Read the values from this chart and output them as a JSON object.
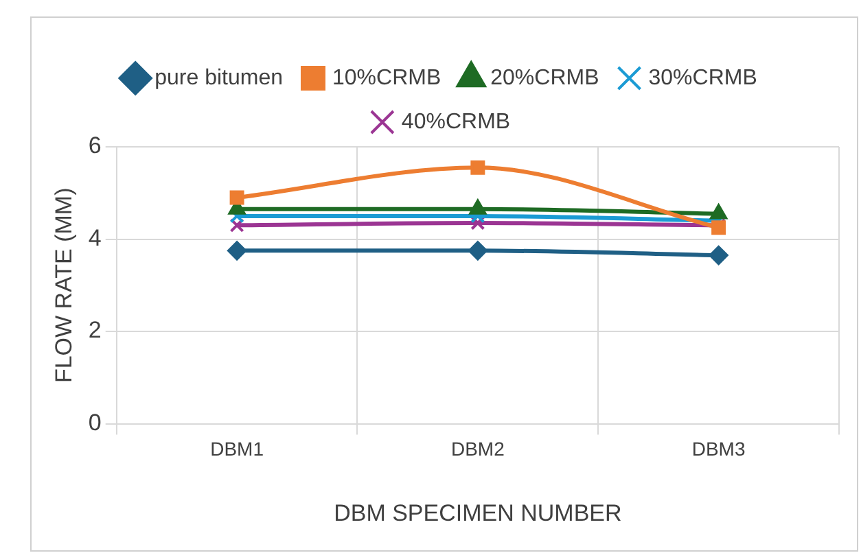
{
  "chart_data": {
    "type": "line",
    "xlabel": "DBM SPECIMEN NUMBER",
    "ylabel": "FLOW RATE (MM)",
    "categories": [
      "DBM1",
      "DBM2",
      "DBM3"
    ],
    "series": [
      {
        "name": "pure bitumen",
        "color": "#1f5f85",
        "marker": "diamond",
        "values": [
          3.75,
          3.75,
          3.65
        ]
      },
      {
        "name": "10%CRMB",
        "color": "#ed7d31",
        "marker": "square",
        "values": [
          4.9,
          5.55,
          4.25
        ]
      },
      {
        "name": "20%CRMB",
        "color": "#1e6b24",
        "marker": "triangle",
        "values": [
          4.65,
          4.65,
          4.55
        ]
      },
      {
        "name": "30%CRMB",
        "color": "#1b9bd4",
        "marker": "cross",
        "values": [
          4.5,
          4.5,
          4.4
        ]
      },
      {
        "name": "40%CRMB",
        "color": "#9b3593",
        "marker": "cross",
        "values": [
          4.3,
          4.35,
          4.3
        ]
      }
    ],
    "ylim": [
      0,
      6
    ],
    "yticks": [
      0,
      2,
      4,
      6
    ],
    "grid": true,
    "legend": "top",
    "line_style": "solid"
  }
}
